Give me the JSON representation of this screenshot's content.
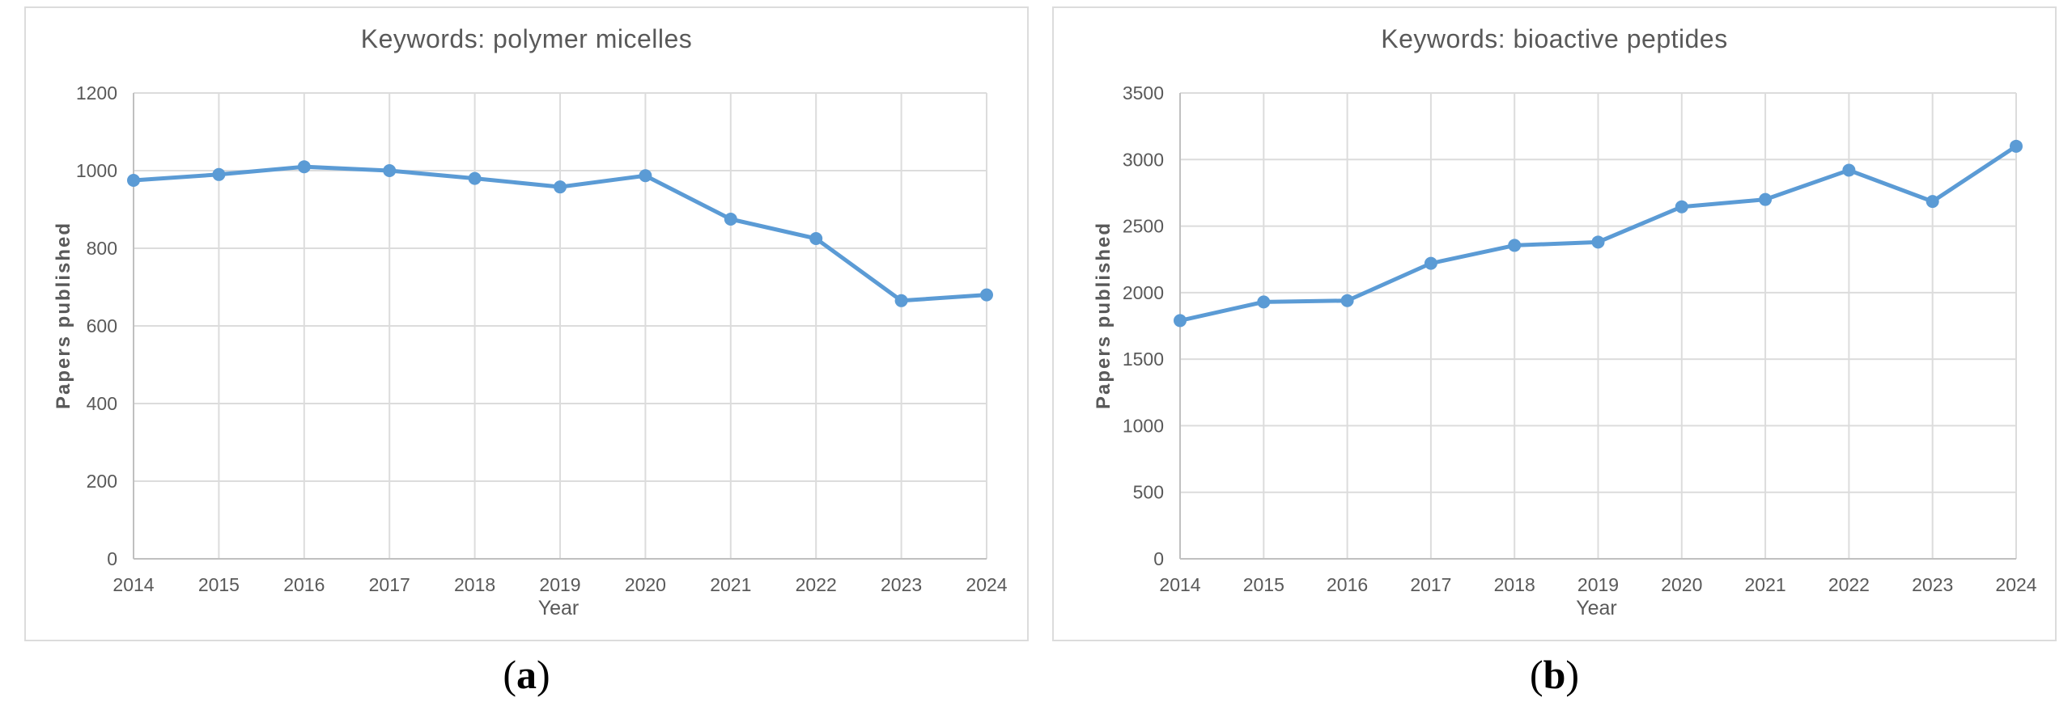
{
  "colors": {
    "series_blue": "#5B9BD5",
    "gridline": "#dcdcdc",
    "axis_line": "#c0c0c0",
    "text_gray": "#595959",
    "panel_border": "#dcdcdc"
  },
  "captions": {
    "a": {
      "open": "(",
      "letter": "a",
      "close": ")"
    },
    "b": {
      "open": "(",
      "letter": "b",
      "close": ")"
    }
  },
  "chart_data": [
    {
      "type": "line",
      "title": "Keywords: polymer micelles",
      "xlabel": "Year",
      "ylabel": "Papers published",
      "categories": [
        "2014",
        "2015",
        "2016",
        "2017",
        "2018",
        "2019",
        "2020",
        "2021",
        "2022",
        "2023",
        "2024"
      ],
      "values": [
        975,
        990,
        1010,
        1000,
        980,
        958,
        987,
        875,
        825,
        665,
        680
      ],
      "ylim": [
        0,
        1200
      ],
      "ytick_step": 200,
      "grid": true,
      "legend": "none",
      "marker": "circle",
      "series_color": "#5B9BD5"
    },
    {
      "type": "line",
      "title": "Keywords: bioactive peptides",
      "xlabel": "Year",
      "ylabel": "Papers published",
      "categories": [
        "2014",
        "2015",
        "2016",
        "2017",
        "2018",
        "2019",
        "2020",
        "2021",
        "2022",
        "2023",
        "2024"
      ],
      "values": [
        1790,
        1930,
        1940,
        2220,
        2355,
        2380,
        2645,
        2700,
        2920,
        2685,
        3100
      ],
      "ylim": [
        0,
        3500
      ],
      "ytick_step": 500,
      "grid": true,
      "legend": "none",
      "marker": "circle",
      "series_color": "#5B9BD5"
    }
  ]
}
